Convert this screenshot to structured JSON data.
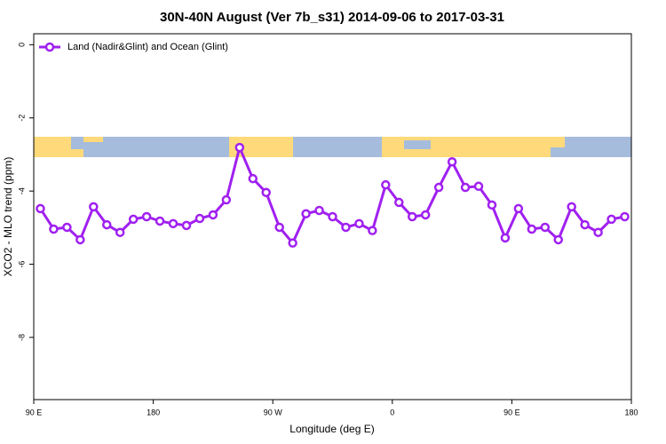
{
  "chart_data": {
    "type": "line",
    "title": "30N-40N August (Ver 7b_s31)   2014-09-06 to 2017-03-31",
    "xlabel": "Longitude (deg E)",
    "ylabel": "XCO2 - MLO trend (ppm)",
    "x": [
      95,
      105,
      115,
      125,
      135,
      145,
      155,
      165,
      175,
      185,
      195,
      205,
      215,
      225,
      235,
      245,
      255,
      265,
      275,
      285,
      295,
      305,
      315,
      325,
      335,
      345,
      355,
      365,
      375,
      385,
      395,
      405,
      415,
      425,
      435,
      445,
      455,
      465,
      475,
      485,
      495,
      505,
      515,
      525,
      535
    ],
    "series": [
      {
        "name": "Land (Nadir&Glint) and Ocean (Glint)",
        "color": "#a020f0",
        "values": [
          -4.48,
          -5.04,
          -4.99,
          -5.33,
          -4.43,
          -4.92,
          -5.13,
          -4.77,
          -4.7,
          -4.82,
          -4.89,
          -4.94,
          -4.75,
          -4.65,
          -4.24,
          -2.81,
          -3.66,
          -4.04,
          -4.99,
          -5.42,
          -4.62,
          -4.53,
          -4.7,
          -4.99,
          -4.89,
          -5.08,
          -3.83,
          -4.31,
          -4.7,
          -4.65,
          -3.9,
          -3.2,
          -3.9,
          -3.87,
          -4.38,
          -5.28,
          -4.48,
          -5.04,
          -4.99,
          -5.33,
          -4.43,
          -4.92,
          -5.13,
          -4.77,
          -4.7
        ]
      }
    ],
    "xlim": [
      90,
      540
    ],
    "xticks": [
      {
        "value": 90,
        "label": "90 E"
      },
      180,
      {
        "value": 270,
        "label": "90 W"
      },
      {
        "value": 360,
        "label": "0"
      },
      {
        "value": 450,
        "label": "90 E"
      },
      {
        "value": 540,
        "label": "180"
      }
    ],
    "ylim": [
      -9.7,
      0.3
    ],
    "yticks": [
      0,
      -2,
      -4,
      -6,
      -8
    ],
    "legend": "top-left"
  }
}
